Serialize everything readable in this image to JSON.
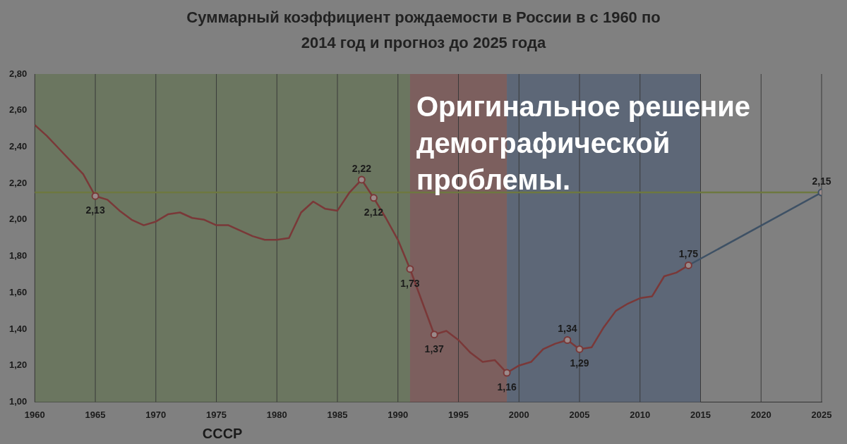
{
  "chart_data": {
    "type": "line",
    "title": "Суммарный коэффициент рождаемости в России в с 1960 по 2014 год и прогноз до 2025 года",
    "subtitle": "Оригинальное решение демографической проблемы.",
    "xlim": [
      1960,
      2025
    ],
    "xticks": [
      1960,
      1965,
      1970,
      1975,
      1980,
      1985,
      1990,
      1995,
      2000,
      2005,
      2010,
      2015,
      2020,
      2025
    ],
    "ylim": [
      1.0,
      2.8
    ],
    "yticks": [
      {
        "value": 1.0,
        "label": "1,00"
      },
      {
        "value": 1.2,
        "label": "1,20"
      },
      {
        "value": 1.4,
        "label": "1,40"
      },
      {
        "value": 1.6,
        "label": "1,60"
      },
      {
        "value": 1.8,
        "label": "1,80"
      },
      {
        "value": 2.0,
        "label": "2,00"
      },
      {
        "value": 2.2,
        "label": "2,20"
      },
      {
        "value": 2.4,
        "label": "2,40"
      },
      {
        "value": 2.6,
        "label": "2,60"
      },
      {
        "value": 2.8,
        "label": "2,80"
      }
    ],
    "grid": "x",
    "legend": false,
    "bands": [
      {
        "axis": "x",
        "from": 1960,
        "to": 1991,
        "label": "СССР",
        "color": "#6b7660"
      },
      {
        "axis": "x",
        "from": 1991,
        "to": 1999,
        "color": "#7c5f5e"
      },
      {
        "axis": "x",
        "from": 1999,
        "to": 2015,
        "color": "#5d6777"
      }
    ],
    "ref_lines": [
      {
        "axis": "y",
        "value": 2.15,
        "color": "#6e7840"
      }
    ],
    "series": [
      {
        "color": "#7a3838",
        "x": [
          1960,
          1961,
          1962,
          1963,
          1964,
          1965,
          1966,
          1967,
          1968,
          1969,
          1970,
          1971,
          1972,
          1973,
          1974,
          1975,
          1976,
          1977,
          1978,
          1979,
          1980,
          1981,
          1982,
          1983,
          1984,
          1985,
          1986,
          1987,
          1988,
          1989,
          1990,
          1991,
          1992,
          1993,
          1994,
          1995,
          1996,
          1997,
          1998,
          1999,
          2000,
          2001,
          2002,
          2003,
          2004,
          2005,
          2006,
          2007,
          2008,
          2009,
          2010,
          2011,
          2012,
          2013,
          2014
        ],
        "values": [
          2.52,
          2.46,
          2.39,
          2.32,
          2.25,
          2.13,
          2.11,
          2.05,
          2.0,
          1.97,
          1.99,
          2.03,
          2.04,
          2.01,
          2.0,
          1.97,
          1.97,
          1.94,
          1.91,
          1.89,
          1.89,
          1.9,
          2.04,
          2.1,
          2.06,
          2.05,
          2.15,
          2.22,
          2.12,
          2.01,
          1.89,
          1.73,
          1.55,
          1.37,
          1.39,
          1.34,
          1.27,
          1.22,
          1.23,
          1.16,
          1.2,
          1.22,
          1.29,
          1.32,
          1.34,
          1.29,
          1.3,
          1.41,
          1.5,
          1.54,
          1.57,
          1.58,
          1.69,
          1.71,
          1.75
        ],
        "value_labels": [
          null,
          null,
          null,
          null,
          null,
          "2,13",
          null,
          null,
          null,
          null,
          null,
          null,
          null,
          null,
          null,
          null,
          null,
          null,
          null,
          null,
          null,
          null,
          null,
          null,
          null,
          null,
          null,
          "2,22",
          "2,12",
          null,
          null,
          "1,73",
          null,
          "1,37",
          null,
          null,
          null,
          null,
          null,
          "1,16",
          null,
          null,
          null,
          null,
          "1,34",
          "1,29",
          null,
          null,
          null,
          null,
          null,
          null,
          null,
          null,
          "1,75"
        ]
      },
      {
        "color": "#3e5165",
        "x": [
          2014,
          2025
        ],
        "values": [
          1.75,
          2.15
        ],
        "value_labels": [
          null,
          "2,15"
        ]
      }
    ]
  }
}
